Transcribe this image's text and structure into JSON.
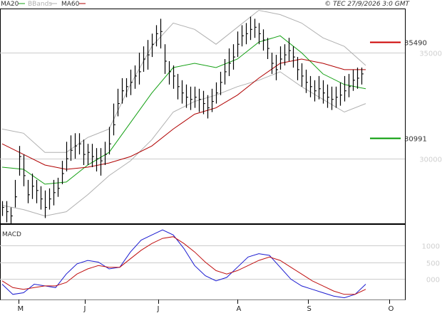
{
  "header": {
    "copyright": "© TEC 27/9/2026 3:0 GMT",
    "legend": [
      {
        "label": "MA20",
        "color": "#14a014"
      },
      {
        "label": "BBands",
        "color": "#b0b0b0"
      },
      {
        "label": "MA60",
        "color": "#b00000"
      }
    ]
  },
  "macd_label": "MACD",
  "colors": {
    "bars": "#000000",
    "ma20": "#14a014",
    "bbands": "#b0b0b0",
    "ma60": "#b00000",
    "macd": "#1a1ad0",
    "signal": "#c01010",
    "resistance": "#cc0000",
    "support": "#009900",
    "grid": "#cccccc"
  },
  "chart_data": [
    {
      "type": "bar",
      "subtype": "ohlc",
      "title": "",
      "ylim": [
        26950,
        37050
      ],
      "y_ticks": [
        {
          "value": 30000,
          "label": "30000"
        },
        {
          "value": 35000,
          "label": "35000"
        }
      ],
      "x_tick_labels": [
        "M",
        "J",
        "J",
        "A",
        "S",
        "O"
      ],
      "grid": "horizontal",
      "levels": [
        {
          "name": "resistance",
          "value": 35490,
          "label": "35490",
          "color": "#cc0000"
        },
        {
          "name": "support",
          "value": 30991,
          "label": "30991",
          "color": "#009900"
        }
      ],
      "x": [
        0,
        6,
        12,
        18,
        24,
        30,
        36,
        42,
        48,
        54,
        60,
        66,
        72,
        78,
        84,
        90,
        96,
        102,
        108,
        114,
        120,
        126,
        132,
        138,
        144,
        150,
        156,
        162,
        168,
        174,
        180,
        186,
        192,
        198,
        204,
        210,
        216,
        222,
        228,
        234,
        240,
        246,
        252,
        258,
        264,
        270,
        276,
        282,
        288,
        294,
        300,
        306,
        312,
        318,
        324,
        330,
        336,
        342,
        348,
        354,
        360,
        366,
        372,
        378,
        384,
        390,
        396,
        402,
        408,
        414,
        420,
        426,
        432,
        438,
        444,
        450,
        456,
        462,
        468,
        474,
        480,
        486,
        492,
        498,
        504
      ],
      "close": [
        27700,
        27500,
        27300,
        28200,
        30100,
        29200,
        28300,
        28700,
        28500,
        28100,
        27700,
        28100,
        28400,
        28600,
        29300,
        30000,
        30400,
        30600,
        30700,
        30200,
        30300,
        30100,
        30000,
        29900,
        30200,
        30700,
        31600,
        32600,
        33200,
        33400,
        33600,
        33900,
        34100,
        34700,
        34900,
        35400,
        35900,
        36000,
        34600,
        34100,
        33900,
        33400,
        33100,
        32900,
        32800,
        32900,
        32800,
        32600,
        32400,
        32700,
        33100,
        33600,
        34100,
        34500,
        34800,
        35400,
        35800,
        35900,
        36100,
        36200,
        35900,
        35600,
        35200,
        34500,
        34200,
        34700,
        34900,
        35100,
        34800,
        34200,
        33900,
        33600,
        33400,
        33200,
        33300,
        33100,
        32900,
        32800,
        32900,
        33000,
        33200,
        33400,
        33700,
        33800,
        34000
      ],
      "high": [
        28000,
        28000,
        27700,
        29000,
        30600,
        30200,
        29000,
        29300,
        29000,
        28700,
        28500,
        28600,
        29000,
        29100,
        29900,
        30800,
        31100,
        31200,
        31200,
        30900,
        30700,
        30700,
        30500,
        30500,
        30800,
        31500,
        32600,
        33300,
        33800,
        33800,
        34200,
        34400,
        35000,
        35300,
        35600,
        35900,
        36300,
        36600,
        35400,
        34600,
        34400,
        34000,
        33700,
        33500,
        33400,
        33400,
        33300,
        33200,
        33000,
        33300,
        33600,
        34100,
        34700,
        35200,
        35400,
        36000,
        36300,
        36400,
        36700,
        36600,
        36400,
        36100,
        35700,
        35000,
        34900,
        35300,
        35400,
        35700,
        35300,
        34800,
        34500,
        34200,
        33900,
        33700,
        33900,
        33700,
        33500,
        33400,
        33400,
        33600,
        33900,
        34000,
        34200,
        34300,
        34300
      ],
      "low": [
        27300,
        27000,
        26950,
        27700,
        29200,
        28700,
        27900,
        28100,
        27900,
        27600,
        27200,
        27600,
        27800,
        28200,
        28800,
        29400,
        29900,
        30000,
        30200,
        29700,
        29700,
        29600,
        29400,
        29200,
        29700,
        30200,
        31100,
        32000,
        32600,
        32900,
        33000,
        33300,
        33500,
        34100,
        34200,
        34800,
        35300,
        35200,
        34000,
        33500,
        33300,
        32800,
        32600,
        32400,
        32300,
        32400,
        32200,
        32100,
        31900,
        32200,
        32600,
        33000,
        33500,
        33900,
        34200,
        34800,
        35300,
        35400,
        35600,
        35700,
        35400,
        35100,
        34700,
        34000,
        33700,
        34200,
        34400,
        34600,
        34300,
        33700,
        33400,
        33100,
        32900,
        32700,
        32800,
        32600,
        32400,
        32300,
        32400,
        32500,
        32700,
        32900,
        33200,
        33300,
        33500
      ],
      "series": [
        {
          "name": "MA20",
          "x": [
            0,
            30,
            60,
            90,
            120,
            150,
            180,
            210,
            240,
            270,
            300,
            330,
            360,
            390,
            420,
            450,
            480,
            510
          ],
          "values": [
            29600,
            29500,
            28800,
            28900,
            29700,
            30300,
            31700,
            33100,
            34300,
            34500,
            34300,
            34700,
            35500,
            35800,
            35000,
            34000,
            33500,
            33300
          ]
        },
        {
          "name": "MA60",
          "x": [
            0,
            30,
            60,
            90,
            120,
            150,
            180,
            210,
            240,
            270,
            300,
            330,
            360,
            390,
            420,
            450,
            480,
            510
          ],
          "values": [
            30700,
            30200,
            29700,
            29500,
            29600,
            29800,
            30100,
            30600,
            31400,
            32100,
            32400,
            33000,
            33800,
            34500,
            34700,
            34500,
            34200,
            34200
          ]
        },
        {
          "name": "BBands",
          "x": [
            0,
            30,
            60,
            90,
            120,
            150,
            180,
            210,
            240,
            270,
            300,
            330,
            360,
            390,
            420,
            450,
            480,
            510
          ],
          "values": [
            31400,
            31200,
            30300,
            30300,
            31000,
            31400,
            33500,
            35300,
            36400,
            36100,
            35400,
            36200,
            37000,
            36800,
            36400,
            35700,
            35300,
            34400
          ]
        },
        {
          "name": "BBands",
          "x": [
            0,
            30,
            60,
            90,
            120,
            150,
            180,
            210,
            240,
            270,
            300,
            330,
            360,
            390,
            420,
            450,
            480,
            510
          ],
          "values": [
            27800,
            27600,
            27300,
            27500,
            28300,
            29200,
            29900,
            30900,
            32200,
            32700,
            33000,
            33400,
            33700,
            34100,
            33400,
            32800,
            32200,
            32600
          ]
        }
      ]
    },
    {
      "type": "line",
      "title": "MACD",
      "ylim": [
        -600,
        1600
      ],
      "y_ticks": [
        {
          "value": 1000,
          "label": "1000"
        },
        {
          "value": 500,
          "label": "500"
        },
        {
          "value": 0,
          "label": "000"
        }
      ],
      "grid": "horizontal",
      "series": [
        {
          "name": "MACD",
          "x": [
            0,
            15,
            30,
            45,
            60,
            75,
            90,
            105,
            120,
            135,
            150,
            165,
            180,
            195,
            210,
            225,
            240,
            255,
            270,
            285,
            300,
            315,
            330,
            345,
            360,
            375,
            390,
            405,
            420,
            435,
            450,
            465,
            480,
            495,
            510
          ],
          "values": [
            -150,
            -450,
            -400,
            -150,
            -200,
            -250,
            150,
            450,
            550,
            500,
            300,
            350,
            800,
            1150,
            1300,
            1450,
            1300,
            900,
            400,
            100,
            -50,
            50,
            350,
            650,
            750,
            700,
            350,
            0,
            -200,
            -300,
            -400,
            -500,
            -550,
            -450,
            -150
          ]
        },
        {
          "name": "Signal",
          "x": [
            0,
            15,
            30,
            45,
            60,
            75,
            90,
            105,
            120,
            135,
            150,
            165,
            180,
            195,
            210,
            225,
            240,
            255,
            270,
            285,
            300,
            315,
            330,
            345,
            360,
            375,
            390,
            405,
            420,
            435,
            450,
            465,
            480,
            495,
            510
          ],
          "values": [
            -50,
            -250,
            -300,
            -250,
            -200,
            -200,
            -100,
            150,
            300,
            400,
            350,
            350,
            600,
            850,
            1050,
            1200,
            1250,
            1050,
            800,
            500,
            250,
            150,
            250,
            400,
            550,
            650,
            550,
            350,
            150,
            -50,
            -200,
            -350,
            -450,
            -450,
            -300
          ]
        }
      ],
      "x_tick_labels": [
        "M",
        "J",
        "J",
        "A",
        "S",
        "O"
      ]
    }
  ]
}
